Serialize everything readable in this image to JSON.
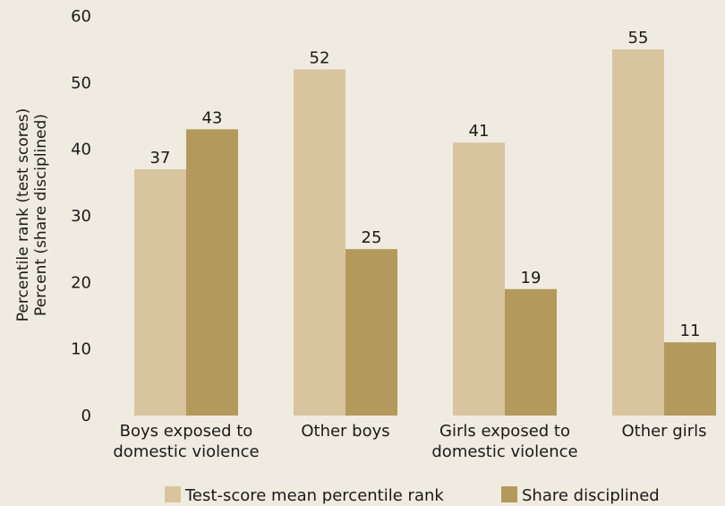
{
  "chart_data": {
    "type": "bar",
    "categories": [
      [
        "Boys exposed to",
        "domestic violence"
      ],
      [
        "Other boys"
      ],
      [
        "Girls exposed to",
        "domestic violence"
      ],
      [
        "Other girls"
      ]
    ],
    "series": [
      {
        "name": "Test-score mean percentile rank",
        "values": [
          37,
          52,
          41,
          55
        ],
        "value_labels": [
          "37",
          "52",
          "41",
          "55"
        ],
        "color": "#d8c59f"
      },
      {
        "name": "Share disciplined",
        "values": [
          43,
          25,
          19,
          11
        ],
        "value_labels": [
          "43",
          "25",
          "19",
          "11"
        ],
        "color": "#b39a5c"
      }
    ],
    "ylabel": [
      "Percentile rank (test scores)",
      "Percent (share disciplined)"
    ],
    "ylim": [
      0,
      60
    ],
    "yticks": [
      0,
      10,
      20,
      30,
      40,
      50,
      60
    ],
    "grid": false,
    "legend": "bottom"
  }
}
